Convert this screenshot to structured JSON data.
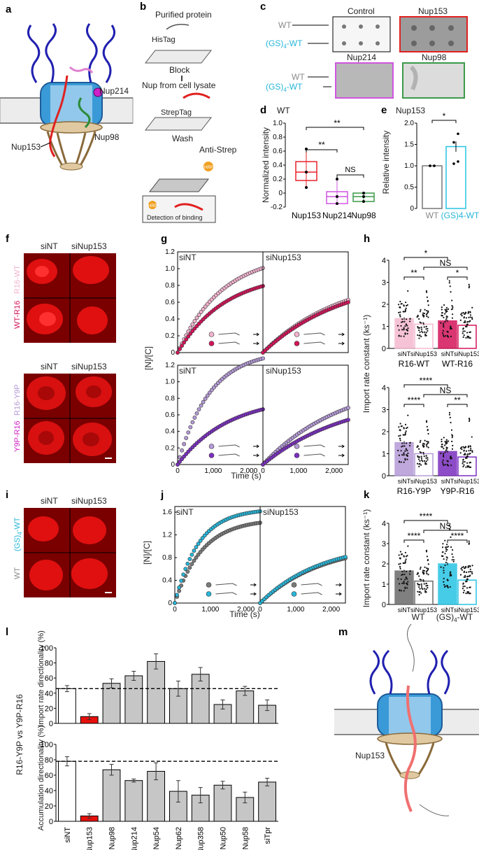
{
  "panels": {
    "a": {
      "letter": "a",
      "labels": {
        "nup214": "Nup214",
        "nup98": "Nup98",
        "nup153": "Nup153"
      }
    },
    "b": {
      "letter": "b",
      "steps": [
        "Purified protein",
        "HisTag",
        "Block",
        "Nup from cell lysate",
        "StrepTag",
        "Wash",
        "Anti-Strep",
        "HRP",
        "HRP",
        "Detection of binding"
      ]
    },
    "c": {
      "letter": "c",
      "row_wt": "WT",
      "row_gs_prefix": "(GS)",
      "row_gs_sub": "4",
      "row_gs_suffix": "-WT",
      "membranes": [
        "Control",
        "Nup153",
        "Nup214",
        "Nup98"
      ]
    },
    "d": {
      "letter": "d",
      "title": "WT"
    },
    "e": {
      "letter": "e",
      "title": "Nup153"
    },
    "f": {
      "letter": "f",
      "col1": "siNT",
      "col2": "siNup153",
      "r1_top": "R16-WT",
      "r1_bot": "WT-R16",
      "r2_top": "R16-Y9P",
      "r2_bot": "Y9P-R16"
    },
    "g": {
      "letter": "g",
      "sub_left": "siNT",
      "sub_right": "siNup153",
      "ylabel": "[N]/[C]",
      "xlabel": "Time (s)"
    },
    "h": {
      "letter": "h",
      "ylabel": "Import rate constant (ks⁻¹)",
      "top_groups": [
        "R16-WT",
        "WT-R16"
      ],
      "bottom_groups": [
        "R16-Y9P",
        "Y9P-R16"
      ],
      "xlab_nt": "siNT",
      "xlab_153": "siNup153",
      "sig_top": [
        "*",
        "NS",
        "**",
        "*"
      ],
      "sig_bottom": [
        "****",
        "NS",
        "****",
        "**"
      ]
    },
    "i": {
      "letter": "i",
      "col1": "siNT",
      "col2": "siNup153",
      "row_top_prefix": "(GS)",
      "row_top_sub": "4",
      "row_top_suffix": "-WT",
      "row_bot": "WT"
    },
    "j": {
      "letter": "j",
      "sub_left": "siNT",
      "sub_right": "siNup153",
      "ylabel": "[N]/[C]",
      "xlabel": "Time (s)"
    },
    "k": {
      "letter": "k",
      "ylabel": "Import rate constant (ks⁻¹)",
      "groups_left": "WT",
      "groups_right_prefix": "(GS)",
      "groups_right_sub": "4",
      "groups_right_suffix": "-WT",
      "xlab_nt": "siNT",
      "xlab_153": "siNup153",
      "sig": [
        "****",
        "NS",
        "****",
        "****"
      ]
    },
    "l": {
      "letter": "l",
      "ylabel_side": "R16-Y9P vs Y9P-R16",
      "ylabel_top": "Import rate directionality (%)",
      "ylabel_bottom": "Accumulation directionality (%)"
    },
    "m": {
      "letter": "m",
      "label": "Nup153"
    }
  },
  "chart_data": [
    {
      "id": "d",
      "type": "box",
      "title": "WT",
      "ylabel": "Normalized intensity",
      "categories": [
        "Nup153",
        "Nup214",
        "Nup98"
      ],
      "ylim": [
        -0.2,
        1.0
      ],
      "yticks": [
        "1.0",
        "0.8",
        "0.6",
        "0.4",
        "0.2",
        "0",
        "-0.2"
      ],
      "boxes": [
        {
          "name": "Nup153",
          "q1": 0.18,
          "median": 0.3,
          "q3": 0.45,
          "wmin": 0.08,
          "wmax": 0.63,
          "points": [
            0.08,
            0.3,
            0.63
          ],
          "color": "#e8202a"
        },
        {
          "name": "Nup214",
          "q1": -0.15,
          "median": -0.05,
          "q3": 0.02,
          "wmin": -0.15,
          "wmax": 0.2,
          "points": [
            -0.15,
            -0.05,
            0.2
          ],
          "color": "#cf55e0"
        },
        {
          "name": "Nup98",
          "q1": -0.12,
          "median": -0.05,
          "q3": 0.0,
          "wmin": -0.12,
          "wmax": 0.0,
          "points": [
            -0.12,
            -0.05,
            0.0
          ],
          "color": "#3a9a48"
        }
      ],
      "significance": [
        {
          "pair": [
            "Nup153",
            "Nup98"
          ],
          "label": "**"
        },
        {
          "pair": [
            "Nup153",
            "Nup214"
          ],
          "label": "**"
        },
        {
          "pair": [
            "Nup214",
            "Nup98"
          ],
          "label": "NS"
        }
      ]
    },
    {
      "id": "e",
      "type": "bar",
      "title": "Nup153",
      "ylabel": "Relative intensity",
      "categories": [
        "WT",
        "(GS)4-WT"
      ],
      "values": [
        1.0,
        1.45
      ],
      "errors": [
        0,
        0.12
      ],
      "ylim": [
        0,
        2.0
      ],
      "yticks": [
        "2.0",
        "1.5",
        "1.0",
        "0.5",
        "0"
      ],
      "points": [
        [
          1,
          1,
          1,
          1
        ],
        [
          1.05,
          1.1,
          1.55,
          1.75
        ]
      ],
      "significance": "*"
    },
    {
      "id": "g",
      "type": "line",
      "xlabel": "Time (s)",
      "ylabel": "[N]/[C]",
      "xlim": [
        0,
        2400
      ],
      "xticks": [
        "0",
        "1,000",
        "2,000"
      ],
      "subplots": [
        {
          "row": "top",
          "knockdown": "siNT",
          "ylim": [
            0,
            1.2
          ],
          "yticks": [
            "1.2",
            "1.0",
            "0.8",
            "0.6",
            "0.4",
            "0.2",
            "0"
          ],
          "series": [
            {
              "name": "R16-WT",
              "plateau": 1.18,
              "k": 0.0008,
              "color": "#f2b3cf"
            },
            {
              "name": "WT-R16",
              "plateau": 0.95,
              "k": 0.00075,
              "color": "#d4145a"
            }
          ]
        },
        {
          "row": "top",
          "knockdown": "siNup153",
          "series": [
            {
              "name": "R16-WT",
              "plateau": 0.95,
              "k": 0.00045,
              "color": "#f2b3cf"
            },
            {
              "name": "WT-R16",
              "plateau": 0.92,
              "k": 0.00044,
              "color": "#d4145a"
            }
          ]
        },
        {
          "row": "bottom",
          "knockdown": "siNT",
          "ylim": [
            0,
            1.2
          ],
          "yticks": [
            "1.2",
            "1.0",
            "0.8",
            "0.6",
            "0.4",
            "0.2",
            "0"
          ],
          "series": [
            {
              "name": "R16-Y9P",
              "plateau": 1.38,
              "k": 0.0011,
              "color": "#b49ad6"
            },
            {
              "name": "Y9P-R16",
              "plateau": 0.82,
              "k": 0.0007,
              "color": "#7b2fbf"
            }
          ]
        },
        {
          "row": "bottom",
          "knockdown": "siNup153",
          "series": [
            {
              "name": "R16-Y9P",
              "plateau": 1.05,
              "k": 0.00044,
              "color": "#b49ad6"
            },
            {
              "name": "Y9P-R16",
              "plateau": 0.85,
              "k": 0.00042,
              "color": "#7b2fbf"
            }
          ]
        }
      ]
    },
    {
      "id": "h",
      "type": "bar",
      "ylabel": "Import rate constant (ks-1)",
      "ylim": [
        0,
        4
      ],
      "yticks": [
        "4",
        "3",
        "2",
        "1",
        "0"
      ],
      "top": {
        "bars": [
          {
            "group": "R16-WT",
            "kd": "siNT",
            "value": 1.35,
            "err": 0.06,
            "color": "#f5b9d0",
            "fill": true
          },
          {
            "group": "R16-WT",
            "kd": "siNup153",
            "value": 1.1,
            "err": 0.05,
            "color": "#f5b9d0",
            "fill": false
          },
          {
            "group": "WT-R16",
            "kd": "siNT",
            "value": 1.25,
            "err": 0.05,
            "color": "#d4145a",
            "fill": true
          },
          {
            "group": "WT-R16",
            "kd": "siNup153",
            "value": 1.05,
            "err": 0.05,
            "color": "#d4145a",
            "fill": false
          }
        ]
      },
      "bottom": {
        "bars": [
          {
            "group": "R16-Y9P",
            "kd": "siNT",
            "value": 1.5,
            "err": 0.07,
            "color": "#b49ad6",
            "fill": true
          },
          {
            "group": "R16-Y9P",
            "kd": "siNup153",
            "value": 1.0,
            "err": 0.06,
            "color": "#b49ad6",
            "fill": false
          },
          {
            "group": "Y9P-R16",
            "kd": "siNT",
            "value": 1.1,
            "err": 0.05,
            "color": "#7b2fbf",
            "fill": true
          },
          {
            "group": "Y9P-R16",
            "kd": "siNup153",
            "value": 0.85,
            "err": 0.06,
            "color": "#7b2fbf",
            "fill": false
          }
        ]
      }
    },
    {
      "id": "j",
      "type": "line",
      "xlabel": "Time (s)",
      "ylabel": "[N]/[C]",
      "xlim": [
        0,
        2400
      ],
      "xticks": [
        "0",
        "1,000",
        "2,000"
      ],
      "ylim": [
        0,
        1.7
      ],
      "yticks": [
        "1.6",
        "1.2",
        "0.8",
        "0.4",
        "0"
      ],
      "subplots": [
        {
          "knockdown": "siNT",
          "series": [
            {
              "name": "WT",
              "plateau": 1.48,
              "k": 0.0013,
              "color": "#7a7a7a"
            },
            {
              "name": "(GS)4-WT",
              "plateau": 1.66,
              "k": 0.0015,
              "color": "#27b6d9"
            }
          ]
        },
        {
          "knockdown": "siNup153",
          "series": [
            {
              "name": "WT",
              "plateau": 1.05,
              "k": 0.00058,
              "color": "#7a7a7a"
            },
            {
              "name": "(GS)4-WT",
              "plateau": 1.08,
              "k": 0.00058,
              "color": "#27b6d9"
            }
          ]
        }
      ]
    },
    {
      "id": "k",
      "type": "bar",
      "ylabel": "Import rate constant (ks-1)",
      "ylim": [
        0,
        4
      ],
      "yticks": [
        "4",
        "3",
        "2",
        "1",
        "0"
      ],
      "bars": [
        {
          "group": "WT",
          "kd": "siNT",
          "value": 1.65,
          "err": 0.06,
          "color": "#6b6b6b",
          "fill": true
        },
        {
          "group": "WT",
          "kd": "siNup153",
          "value": 1.15,
          "err": 0.05,
          "color": "#6b6b6b",
          "fill": false
        },
        {
          "group": "(GS)4-WT",
          "kd": "siNT",
          "value": 2.0,
          "err": 0.07,
          "color": "#27c4e3",
          "fill": true
        },
        {
          "group": "(GS)4-WT",
          "kd": "siNup153",
          "value": 1.2,
          "err": 0.05,
          "color": "#27c4e3",
          "fill": false
        }
      ]
    },
    {
      "id": "l",
      "type": "bar",
      "categories": [
        "siNT",
        "siNup153",
        "siNup98",
        "siNup214",
        "siNup54",
        "siNup62",
        "siNup358",
        "siNup50",
        "siNup58",
        "siTpr"
      ],
      "ylim": [
        0,
        100
      ],
      "yticks": [
        "100",
        "80",
        "60",
        "40",
        "20",
        "0"
      ],
      "series": [
        {
          "name": "Import rate directionality (%)",
          "values": [
            46,
            9,
            53,
            63,
            82,
            46,
            65,
            25,
            43,
            24
          ],
          "errors": [
            4,
            4,
            6,
            6,
            10,
            10,
            9,
            6,
            6,
            7
          ],
          "reference": 46
        },
        {
          "name": "Accumulation directionality (%)",
          "values": [
            78,
            7,
            67,
            53,
            65,
            39,
            34,
            47,
            31,
            51
          ],
          "errors": [
            6,
            3,
            7,
            2,
            11,
            14,
            10,
            5,
            7,
            5
          ],
          "reference": 78
        }
      ]
    }
  ]
}
